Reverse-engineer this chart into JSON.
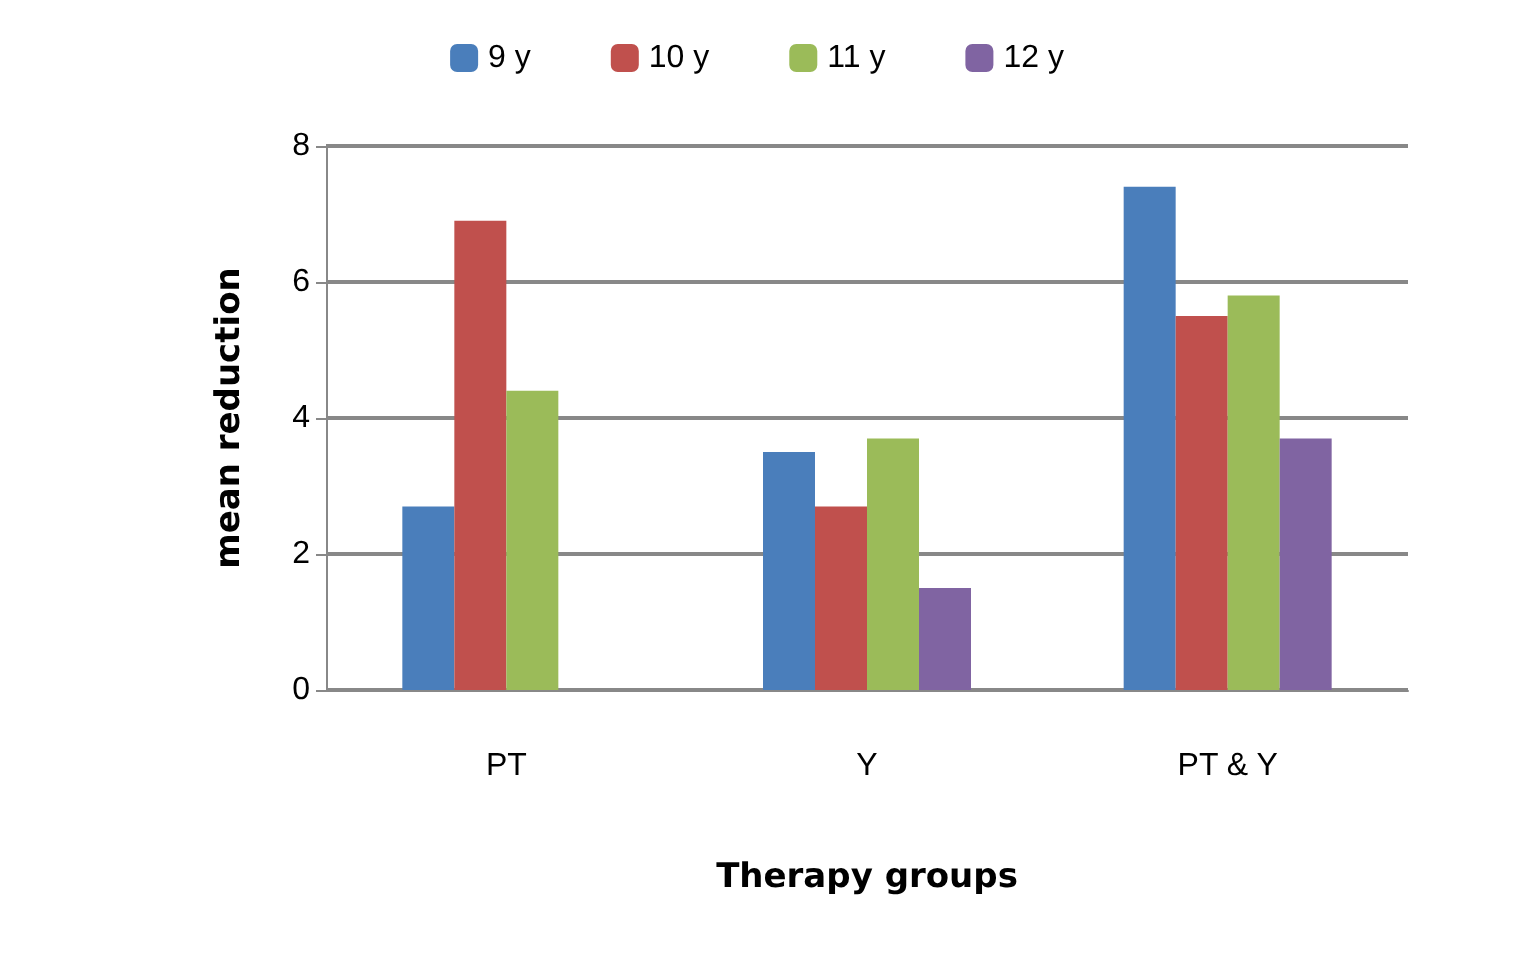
{
  "chart_data": {
    "type": "bar",
    "xlabel": "Therapy groups",
    "ylabel": "mean reduction",
    "categories": [
      "PT",
      "Y",
      "PT & Y"
    ],
    "series": [
      {
        "name": "9 y",
        "color": "#4a7ebb",
        "values": [
          2.7,
          3.5,
          7.4
        ]
      },
      {
        "name": "10 y",
        "color": "#c0504d",
        "values": [
          6.9,
          2.7,
          5.5
        ]
      },
      {
        "name": "11 y",
        "color": "#9bbb59",
        "values": [
          4.4,
          3.7,
          5.8
        ]
      },
      {
        "name": "12 y",
        "color": "#8064a2",
        "values": [
          0,
          1.5,
          3.7
        ]
      }
    ],
    "ylim": [
      0,
      8
    ],
    "yticks": [
      0,
      2,
      4,
      6,
      8
    ],
    "grid": "y",
    "legend": "top"
  }
}
